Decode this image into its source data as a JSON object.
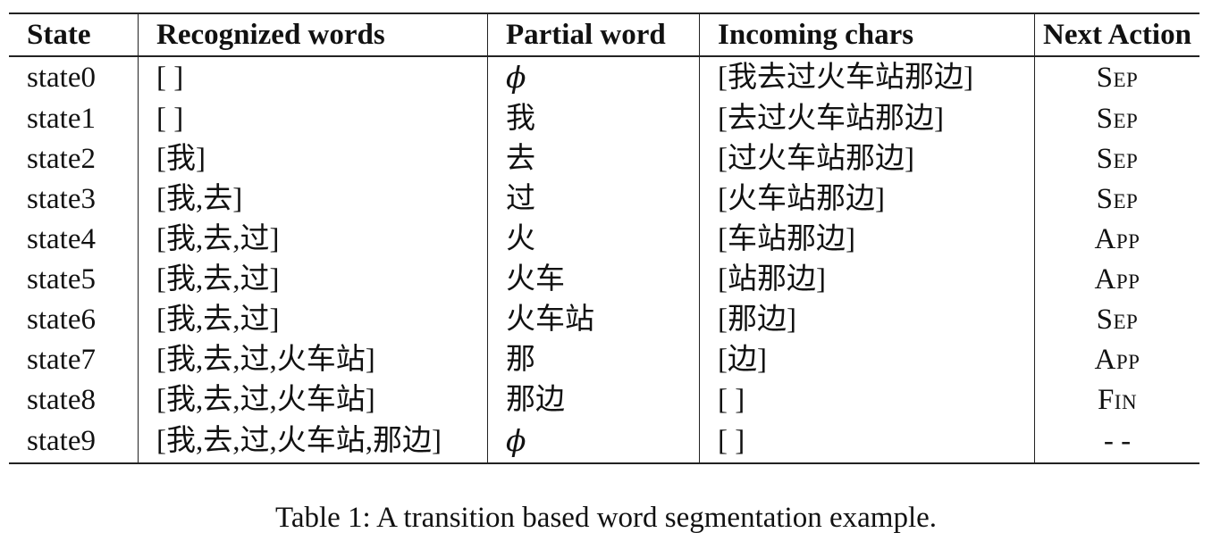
{
  "table": {
    "headers": [
      "State",
      "Recognized words",
      "Partial word",
      "Incoming chars",
      "Next Action"
    ],
    "rows": [
      {
        "state": "state0",
        "recognized": "[ ]",
        "partial": "ϕ",
        "incoming": "[我去过火车站那边]",
        "action": "Sep"
      },
      {
        "state": "state1",
        "recognized": "[ ]",
        "partial": "我",
        "incoming": "[去过火车站那边]",
        "action": "Sep"
      },
      {
        "state": "state2",
        "recognized": "[我]",
        "partial": "去",
        "incoming": "[过火车站那边]",
        "action": "Sep"
      },
      {
        "state": "state3",
        "recognized": "[我,去]",
        "partial": "过",
        "incoming": "[火车站那边]",
        "action": "Sep"
      },
      {
        "state": "state4",
        "recognized": "[我,去,过]",
        "partial": "火",
        "incoming": "[车站那边]",
        "action": "App"
      },
      {
        "state": "state5",
        "recognized": "[我,去,过]",
        "partial": "火车",
        "incoming": "[站那边]",
        "action": "App"
      },
      {
        "state": "state6",
        "recognized": "[我,去,过]",
        "partial": "火车站",
        "incoming": "[那边]",
        "action": "Sep"
      },
      {
        "state": "state7",
        "recognized": "[我,去,过,火车站]",
        "partial": "那",
        "incoming": "[边]",
        "action": "App"
      },
      {
        "state": "state8",
        "recognized": "[我,去,过,火车站]",
        "partial": "那边",
        "incoming": "[ ]",
        "action": "Fin"
      },
      {
        "state": "state9",
        "recognized": "[我,去,过,火车站,那边]",
        "partial": "ϕ",
        "incoming": "[ ]",
        "action": "- -"
      }
    ]
  },
  "caption": "Table 1: A transition based word segmentation example."
}
